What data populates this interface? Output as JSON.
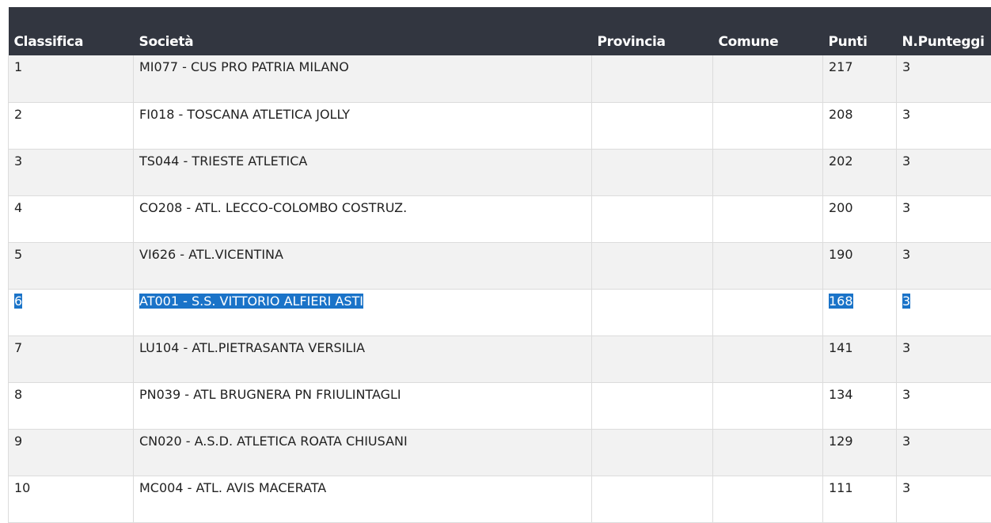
{
  "table": {
    "headers": [
      "Classifica",
      "Società",
      "Provincia",
      "Comune",
      "Punti",
      "N.Punteggi"
    ],
    "rows": [
      {
        "classifica": "1",
        "societa": "MI077 - CUS PRO PATRIA MILANO",
        "provincia": "",
        "comune": "",
        "punti": "217",
        "npunteggi": "3"
      },
      {
        "classifica": "2",
        "societa": "FI018 - TOSCANA ATLETICA JOLLY",
        "provincia": "",
        "comune": "",
        "punti": "208",
        "npunteggi": "3"
      },
      {
        "classifica": "3",
        "societa": "TS044 - TRIESTE ATLETICA",
        "provincia": "",
        "comune": "",
        "punti": "202",
        "npunteggi": "3"
      },
      {
        "classifica": "4",
        "societa": "CO208 - ATL. LECCO-COLOMBO COSTRUZ.",
        "provincia": "",
        "comune": "",
        "punti": "200",
        "npunteggi": "3"
      },
      {
        "classifica": "5",
        "societa": "VI626 - ATL.VICENTINA",
        "provincia": "",
        "comune": "",
        "punti": "190",
        "npunteggi": "3"
      },
      {
        "classifica": "6",
        "societa": "AT001 - S.S. VITTORIO ALFIERI ASTI",
        "provincia": "",
        "comune": "",
        "punti": "168",
        "npunteggi": "3"
      },
      {
        "classifica": "7",
        "societa": "LU104 - ATL.PIETRASANTA VERSILIA",
        "provincia": "",
        "comune": "",
        "punti": "141",
        "npunteggi": "3"
      },
      {
        "classifica": "8",
        "societa": "PN039 - ATL BRUGNERA PN FRIULINTAGLI",
        "provincia": "",
        "comune": "",
        "punti": "134",
        "npunteggi": "3"
      },
      {
        "classifica": "9",
        "societa": "CN020 - A.S.D. ATLETICA ROATA CHIUSANI",
        "provincia": "",
        "comune": "",
        "punti": "129",
        "npunteggi": "3"
      },
      {
        "classifica": "10",
        "societa": "MC004 - ATL. AVIS MACERATA",
        "provincia": "",
        "comune": "",
        "punti": "111",
        "npunteggi": "3"
      }
    ]
  },
  "colors": {
    "header_bg": "#323640",
    "row_alt_bg": "#f2f2f2",
    "selection_bg": "#1a73c8"
  },
  "selected_row_index": 5
}
